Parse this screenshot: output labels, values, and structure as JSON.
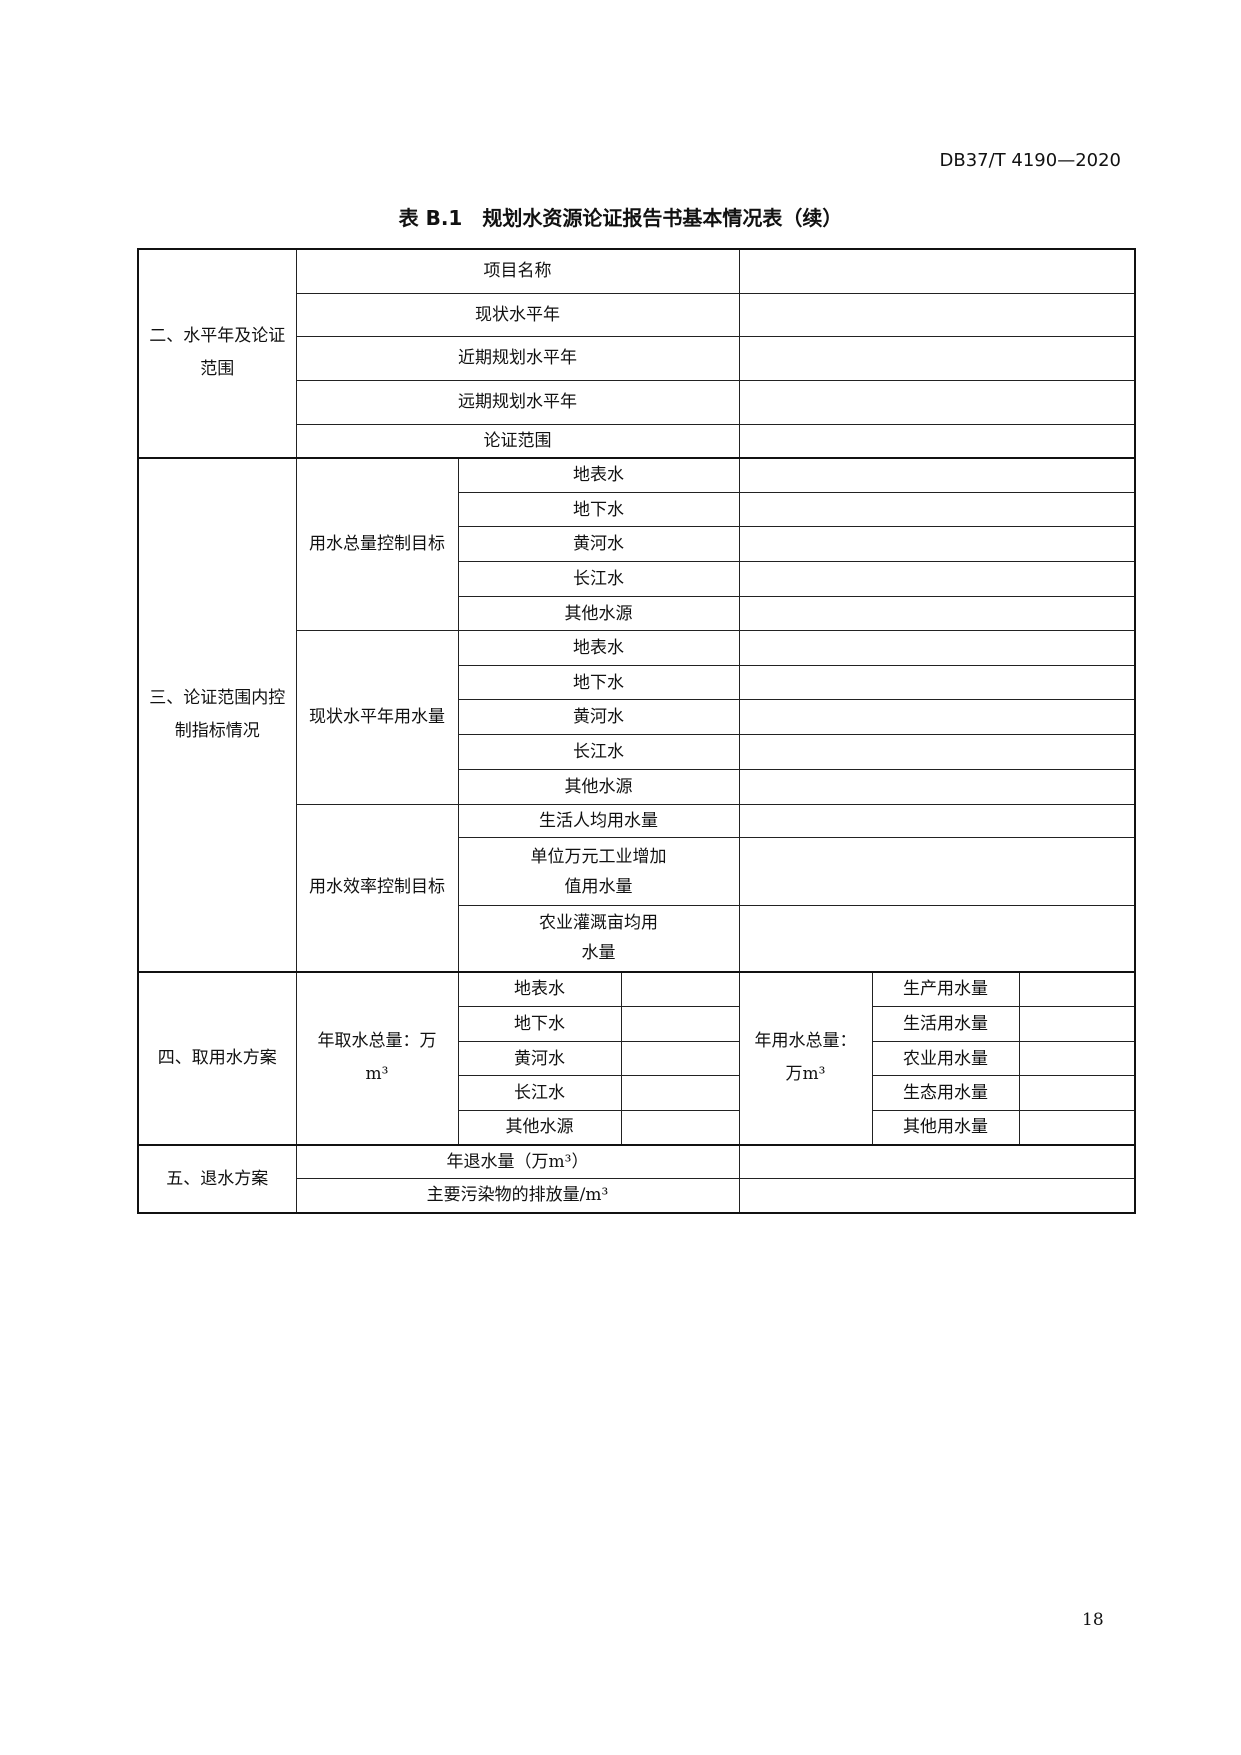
{
  "header": {
    "standard_code": "DB37/T 4190—2020"
  },
  "title": "表 B.1　规划水资源论证报告书基本情况表（续）",
  "section2": {
    "label": "二、水平年及论证范围",
    "rows": [
      "项目名称",
      "现状水平年",
      "近期规划水平年",
      "远期规划水平年",
      "论证范围"
    ]
  },
  "section3": {
    "label": "三、论证范围内控制指标情况",
    "groups": [
      {
        "label": "用水总量控制目标",
        "rows": [
          "地表水",
          "地下水",
          "黄河水",
          "长江水",
          "其他水源"
        ]
      },
      {
        "label": "现状水平年用水量",
        "rows": [
          "地表水",
          "地下水",
          "黄河水",
          "长江水",
          "其他水源"
        ]
      },
      {
        "label": "用水效率控制目标",
        "rows": [
          "生活人均用水量",
          "单位万元工业增加值用水量",
          "农业灌溉亩均用水量"
        ]
      }
    ]
  },
  "section4": {
    "label": "四、取用水方案",
    "intake_label": "年取水总量：万m³",
    "intake_rows": [
      "地表水",
      "地下水",
      "黄河水",
      "长江水",
      "其他水源"
    ],
    "use_label": "年用水总量：万m³",
    "use_rows": [
      "生产用水量",
      "生活用水量",
      "农业用水量",
      "生态用水量",
      "其他用水量"
    ]
  },
  "section5": {
    "label": "五、退水方案",
    "rows": [
      "年退水量（万m³）",
      "主要污染物的排放量/m³"
    ]
  },
  "page_number": "18"
}
